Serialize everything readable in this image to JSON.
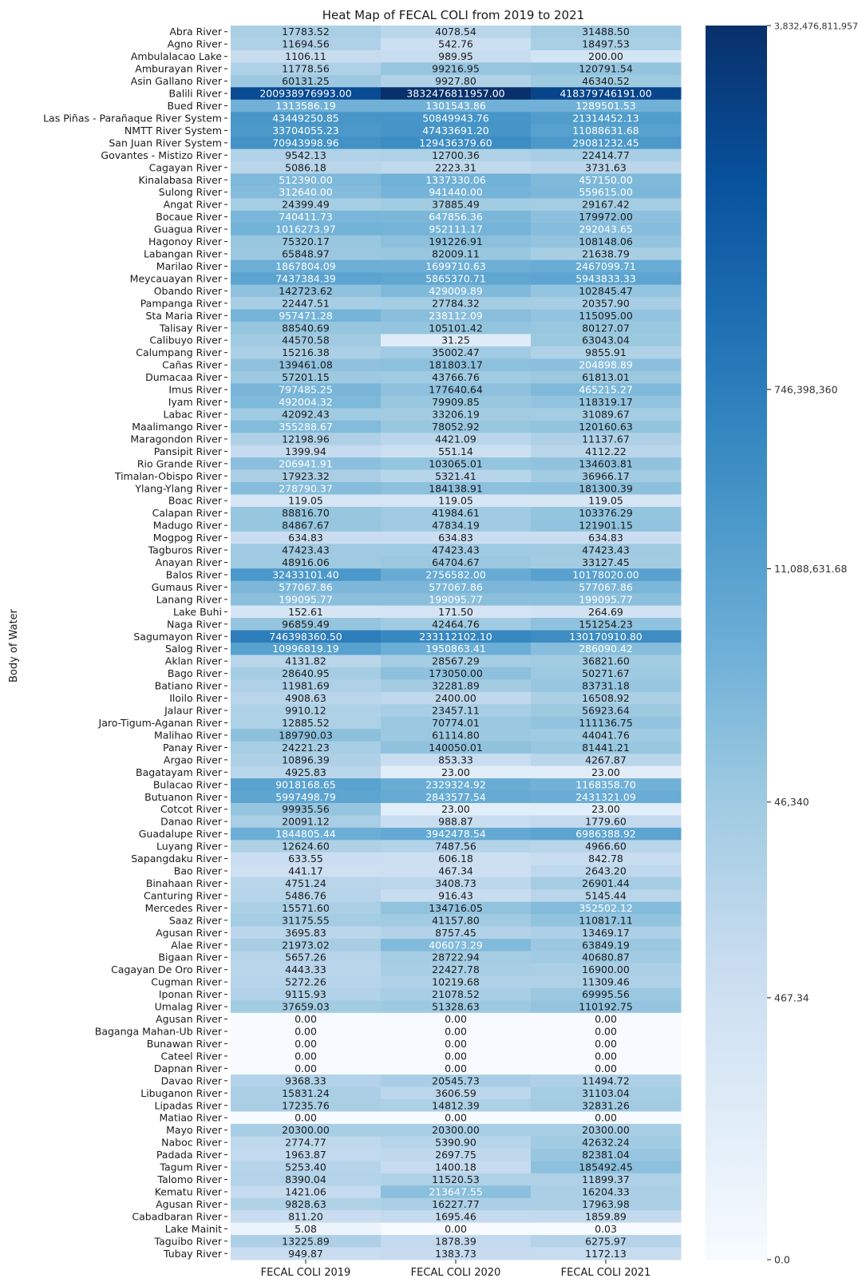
{
  "chart_data": {
    "type": "heatmap",
    "title": "Heat Map of FECAL COLI from 2019 to 2021",
    "ylabel": "Body of Water",
    "xlabel": "",
    "columns": [
      "FECAL COLI 2019",
      "FECAL COLI 2020",
      "FECAL COLI 2021"
    ],
    "colormap": "Blues",
    "color_low": "#f7fbff",
    "color_high": "#08306b",
    "scale": "log",
    "colorbar_ticks": [
      {
        "value": 3832476811957,
        "label": "3,832,476,811,957"
      },
      {
        "value": 746398360,
        "label": "746,398,360"
      },
      {
        "value": 11088631.68,
        "label": "11,088,631.68"
      },
      {
        "value": 46340,
        "label": "46,340"
      },
      {
        "value": 467.34,
        "label": "467.34"
      },
      {
        "value": 0,
        "label": "0.0"
      }
    ],
    "rows": [
      {
        "name": "Abra River",
        "values": [
          17783.52,
          4078.54,
          31488.5
        ]
      },
      {
        "name": "Agno River",
        "values": [
          11694.56,
          542.76,
          18497.53
        ]
      },
      {
        "name": "Ambulalacao Lake",
        "values": [
          1106.11,
          989.95,
          200.0
        ]
      },
      {
        "name": "Amburayan River",
        "values": [
          11778.56,
          99216.95,
          120791.54
        ]
      },
      {
        "name": "Asin Gallano River",
        "values": [
          60131.25,
          9927.8,
          46340.52
        ]
      },
      {
        "name": "Balili River",
        "values": [
          200938976993.0,
          3832476811957.0,
          418379746191.0
        ]
      },
      {
        "name": "Bued River",
        "values": [
          1313586.19,
          1301543.86,
          1289501.53
        ]
      },
      {
        "name": "Las Piñas - Parañaque River System",
        "values": [
          43449250.85,
          50849943.76,
          21314452.13
        ]
      },
      {
        "name": "NMTT River System",
        "values": [
          33704055.23,
          47433691.2,
          11088631.68
        ]
      },
      {
        "name": "San Juan River System",
        "values": [
          70943998.96,
          129436379.6,
          29081232.45
        ]
      },
      {
        "name": "Govantes - Mistizo River",
        "values": [
          9542.13,
          12700.36,
          22414.77
        ]
      },
      {
        "name": "Cagayan River",
        "values": [
          5086.18,
          2223.31,
          3731.63
        ]
      },
      {
        "name": "Kinalabasa River",
        "values": [
          512390.0,
          1337330.06,
          457150.0
        ]
      },
      {
        "name": "Sulong River",
        "values": [
          312640.0,
          941440.0,
          559615.0
        ]
      },
      {
        "name": "Angat River",
        "values": [
          24399.49,
          37885.49,
          29167.42
        ]
      },
      {
        "name": "Bocaue River",
        "values": [
          740411.73,
          647856.36,
          179972.0
        ]
      },
      {
        "name": "Guagua River",
        "values": [
          1016273.97,
          952111.17,
          292043.65
        ]
      },
      {
        "name": "Hagonoy River",
        "values": [
          75320.17,
          191226.91,
          108148.06
        ]
      },
      {
        "name": "Labangan River",
        "values": [
          65848.97,
          82009.11,
          21638.79
        ]
      },
      {
        "name": "Marilao River",
        "values": [
          1867804.09,
          1699710.63,
          2467099.71
        ]
      },
      {
        "name": "Meycauayan River",
        "values": [
          7437384.39,
          5865370.71,
          5943833.33
        ]
      },
      {
        "name": "Obando River",
        "values": [
          142723.62,
          429009.89,
          102845.47
        ]
      },
      {
        "name": "Pampanga River",
        "values": [
          22447.51,
          27784.32,
          20357.9
        ]
      },
      {
        "name": "Sta Maria River",
        "values": [
          957471.28,
          238112.09,
          115095.0
        ]
      },
      {
        "name": "Talisay River",
        "values": [
          88540.69,
          105101.42,
          80127.07
        ]
      },
      {
        "name": "Calibuyo River",
        "values": [
          44570.58,
          31.25,
          63043.04
        ]
      },
      {
        "name": "Calumpang River",
        "values": [
          15216.38,
          35002.47,
          9855.91
        ]
      },
      {
        "name": "Cañas River",
        "values": [
          139461.08,
          181803.17,
          204898.89
        ]
      },
      {
        "name": "Dumacaa River",
        "values": [
          57201.15,
          43766.76,
          61813.01
        ]
      },
      {
        "name": "Imus River",
        "values": [
          797485.25,
          177640.64,
          465215.27
        ]
      },
      {
        "name": "Iyam River",
        "values": [
          492004.32,
          79909.85,
          118319.17
        ]
      },
      {
        "name": "Labac River",
        "values": [
          42092.43,
          33206.19,
          31089.67
        ]
      },
      {
        "name": "Maalimango River",
        "values": [
          355288.67,
          78052.92,
          120160.63
        ]
      },
      {
        "name": "Maragondon River",
        "values": [
          12198.96,
          4421.09,
          11137.67
        ]
      },
      {
        "name": "Pansipit River",
        "values": [
          1399.94,
          551.14,
          4112.22
        ]
      },
      {
        "name": "Rio Grande River",
        "values": [
          206941.91,
          103065.01,
          134603.81
        ]
      },
      {
        "name": "Timalan-Obispo River",
        "values": [
          17923.32,
          5321.41,
          36966.17
        ]
      },
      {
        "name": "Ylang-Ylang River",
        "values": [
          278790.37,
          184138.91,
          181300.39
        ]
      },
      {
        "name": "Boac River",
        "values": [
          119.05,
          119.05,
          119.05
        ]
      },
      {
        "name": "Calapan River",
        "values": [
          88816.7,
          41984.61,
          103376.29
        ]
      },
      {
        "name": "Madugo River",
        "values": [
          84867.67,
          47834.19,
          121901.15
        ]
      },
      {
        "name": "Mogpog River",
        "values": [
          634.83,
          634.83,
          634.83
        ]
      },
      {
        "name": "Tagburos River",
        "values": [
          47423.43,
          47423.43,
          47423.43
        ]
      },
      {
        "name": "Anayan River",
        "values": [
          48916.06,
          64704.67,
          33127.45
        ]
      },
      {
        "name": "Balos River",
        "values": [
          32433101.4,
          2756582.0,
          10178020.0
        ]
      },
      {
        "name": "Gumaus River",
        "values": [
          577067.86,
          577067.86,
          577067.86
        ]
      },
      {
        "name": "Lanang River",
        "values": [
          199095.77,
          199095.77,
          199095.77
        ]
      },
      {
        "name": "Lake Buhi",
        "values": [
          152.61,
          171.5,
          264.69
        ]
      },
      {
        "name": "Naga River",
        "values": [
          96859.49,
          42464.76,
          151254.23
        ]
      },
      {
        "name": "Sagumayon River",
        "values": [
          746398360.5,
          233112102.1,
          130170910.8
        ]
      },
      {
        "name": "Salog River",
        "values": [
          10996819.19,
          1950863.41,
          286090.42
        ]
      },
      {
        "name": "Aklan River",
        "values": [
          4131.82,
          28567.29,
          36821.6
        ]
      },
      {
        "name": "Bago River",
        "values": [
          28640.95,
          173050.0,
          50271.67
        ]
      },
      {
        "name": "Batiano River",
        "values": [
          11981.69,
          32281.89,
          83731.18
        ]
      },
      {
        "name": "Iloilo River",
        "values": [
          4908.63,
          2400.0,
          16508.92
        ]
      },
      {
        "name": "Jalaur River",
        "values": [
          9910.12,
          23457.11,
          56923.64
        ]
      },
      {
        "name": "Jaro-Tigum-Aganan River",
        "values": [
          12885.52,
          70774.01,
          111136.75
        ]
      },
      {
        "name": "Malihao River",
        "values": [
          189790.03,
          61114.8,
          44041.76
        ]
      },
      {
        "name": "Panay River",
        "values": [
          24221.23,
          140050.01,
          81441.21
        ]
      },
      {
        "name": "Argao River",
        "values": [
          10896.39,
          853.33,
          4267.87
        ]
      },
      {
        "name": "Bagatayam River",
        "values": [
          4925.83,
          23.0,
          23.0
        ]
      },
      {
        "name": "Bulacao River",
        "values": [
          9018168.65,
          2329324.92,
          1168358.7
        ]
      },
      {
        "name": "Butuanon River",
        "values": [
          5997498.79,
          2843577.54,
          2431321.09
        ]
      },
      {
        "name": "Cotcot River",
        "values": [
          99935.56,
          23.0,
          23.0
        ]
      },
      {
        "name": "Danao River",
        "values": [
          20091.12,
          988.87,
          1779.6
        ]
      },
      {
        "name": "Guadalupe River",
        "values": [
          1844805.44,
          3942478.54,
          6986388.92
        ]
      },
      {
        "name": "Luyang River",
        "values": [
          12624.6,
          7487.56,
          4966.6
        ]
      },
      {
        "name": "Sapangdaku River",
        "values": [
          633.55,
          606.18,
          842.78
        ]
      },
      {
        "name": "Bao River",
        "values": [
          441.17,
          467.34,
          2643.2
        ]
      },
      {
        "name": "Binahaan River",
        "values": [
          4751.24,
          3408.73,
          26901.44
        ]
      },
      {
        "name": "Canturing River",
        "values": [
          5486.76,
          916.43,
          5145.44
        ]
      },
      {
        "name": "Mercedes River",
        "values": [
          15571.6,
          134716.05,
          352502.12
        ]
      },
      {
        "name": "Saaz River",
        "values": [
          31175.55,
          41157.8,
          110817.11
        ]
      },
      {
        "name": "Agusan River",
        "values": [
          3695.83,
          8757.45,
          13469.17
        ]
      },
      {
        "name": "Alae River",
        "values": [
          21973.02,
          406073.29,
          63849.19
        ]
      },
      {
        "name": "Bigaan River",
        "values": [
          5657.26,
          28722.94,
          40680.87
        ]
      },
      {
        "name": "Cagayan De Oro River",
        "values": [
          4443.33,
          22427.78,
          16900.0
        ]
      },
      {
        "name": "Cugman River",
        "values": [
          5272.26,
          10219.68,
          11309.46
        ]
      },
      {
        "name": "Iponan River",
        "values": [
          9115.93,
          21078.52,
          69995.56
        ]
      },
      {
        "name": "Umalag River",
        "values": [
          37659.03,
          51328.63,
          110192.75
        ]
      },
      {
        "name": "Agusan River",
        "values": [
          0.0,
          0.0,
          0.0
        ]
      },
      {
        "name": "Baganga Mahan-Ub River",
        "values": [
          0.0,
          0.0,
          0.0
        ]
      },
      {
        "name": "Bunawan River",
        "values": [
          0.0,
          0.0,
          0.0
        ]
      },
      {
        "name": "Cateel River",
        "values": [
          0.0,
          0.0,
          0.0
        ]
      },
      {
        "name": "Dapnan River",
        "values": [
          0.0,
          0.0,
          0.0
        ]
      },
      {
        "name": "Davao River",
        "values": [
          9368.33,
          20545.73,
          11494.72
        ]
      },
      {
        "name": "Libuganon River",
        "values": [
          15831.24,
          3606.59,
          31103.04
        ]
      },
      {
        "name": "Lipadas River",
        "values": [
          17235.76,
          14812.39,
          32831.26
        ]
      },
      {
        "name": "Matiao River",
        "values": [
          0.0,
          0.0,
          0.0
        ]
      },
      {
        "name": "Mayo River",
        "values": [
          20300.0,
          20300.0,
          20300.0
        ]
      },
      {
        "name": "Naboc River",
        "values": [
          2774.77,
          5390.9,
          42632.24
        ]
      },
      {
        "name": "Padada River",
        "values": [
          1963.87,
          2697.75,
          82381.04
        ]
      },
      {
        "name": "Tagum River",
        "values": [
          5253.4,
          1400.18,
          185492.45
        ]
      },
      {
        "name": "Talomo River",
        "values": [
          8390.04,
          11520.53,
          11899.37
        ]
      },
      {
        "name": "Kematu River",
        "values": [
          1421.06,
          213647.55,
          16204.33
        ]
      },
      {
        "name": "Agusan River",
        "values": [
          9828.63,
          16227.77,
          17963.98
        ]
      },
      {
        "name": "Cabadbaran River",
        "values": [
          811.2,
          1695.46,
          1859.89
        ]
      },
      {
        "name": "Lake Mainit",
        "values": [
          5.08,
          0.0,
          0.03
        ]
      },
      {
        "name": "Taguibo River",
        "values": [
          13225.89,
          1878.39,
          6275.97
        ]
      },
      {
        "name": "Tubay River",
        "values": [
          949.87,
          1383.73,
          1172.13
        ]
      }
    ]
  }
}
